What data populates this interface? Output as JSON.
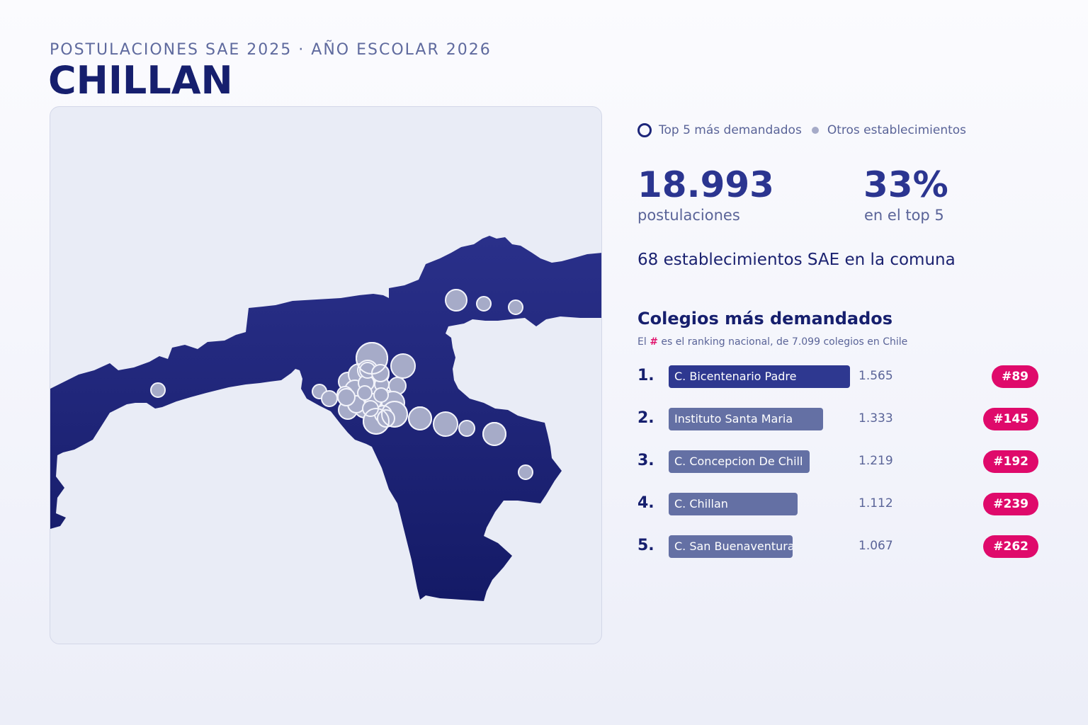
{
  "header": {
    "subtitle": "POSTULACIONES SAE 2025 · AÑO ESCOLAR 2026",
    "title": "CHILLAN"
  },
  "legend": {
    "top5": "Top 5 más demandados",
    "others": "Otros establecimientos"
  },
  "stats": {
    "applications_value": "18.993",
    "applications_label": "postulaciones",
    "top5_share_value": "33%",
    "top5_share_label": "en el top 5",
    "schools_line": "68 establecimientos SAE en la comuna"
  },
  "ranking": {
    "title": "Colegios más demandados",
    "note_prefix": "El",
    "note_hash": "#",
    "note_suffix": "es el ranking nacional, de 7.099 colegios en Chile",
    "items": [
      {
        "pos": "1.",
        "name": "C. Bicentenario Padre",
        "value": "1.565",
        "applications": 1565,
        "national": "#89"
      },
      {
        "pos": "2.",
        "name": "Instituto Santa Maria",
        "value": "1.333",
        "applications": 1333,
        "national": "#145"
      },
      {
        "pos": "3.",
        "name": "C. Concepcion De Chill",
        "value": "1.219",
        "applications": 1219,
        "national": "#192"
      },
      {
        "pos": "4.",
        "name": "C. Chillan",
        "value": "1.112",
        "applications": 1112,
        "national": "#239"
      },
      {
        "pos": "5.",
        "name": "C. San Buenaventura",
        "value": "1.067",
        "applications": 1067,
        "national": "#262"
      }
    ]
  },
  "colors": {
    "region_fill": "#1e2478",
    "marker_fill": "#a6abc8",
    "marker_stroke": "#f2f3fa",
    "bar_first": "#2e3890",
    "bar_other": "#6470a4",
    "badge": "#df0a6b",
    "accent_text": "#161f6e"
  }
}
